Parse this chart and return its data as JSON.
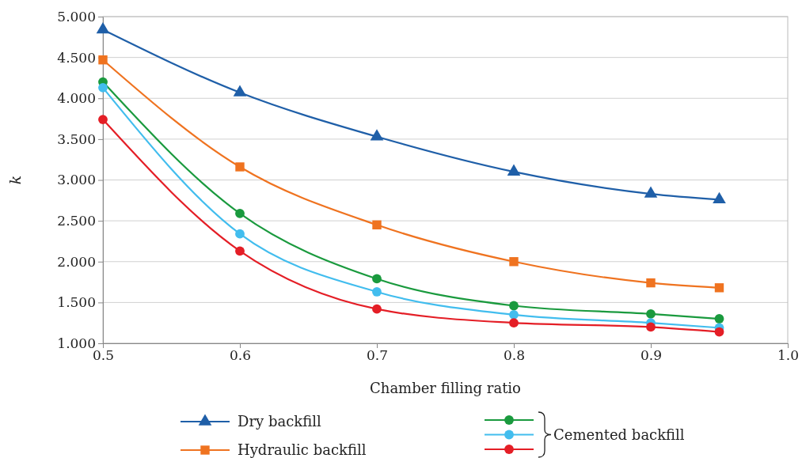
{
  "chart_data": {
    "type": "line",
    "xlabel": "Chamber filling ratio",
    "ylabel": "k",
    "x": [
      0.5,
      0.6,
      0.7,
      0.8,
      0.9,
      0.95
    ],
    "xlim": [
      0.5,
      1.0
    ],
    "xticks": [
      0.5,
      0.6,
      0.7,
      0.8,
      0.9,
      {
        "value": 1.0,
        "label": "1.0"
      }
    ],
    "ylim": [
      1,
      5
    ],
    "yticks": [
      {
        "value": 1,
        "label": "1.000"
      },
      {
        "value": 1.5,
        "label": "1.500"
      },
      {
        "value": 2,
        "label": "2.000"
      },
      {
        "value": 2.5,
        "label": "2.500"
      },
      {
        "value": 3,
        "label": "3.000"
      },
      {
        "value": 3.5,
        "label": "3.500"
      },
      {
        "value": 4,
        "label": "4.000"
      },
      {
        "value": 4.5,
        "label": "4.500"
      },
      {
        "value": 5,
        "label": "5.000"
      }
    ],
    "grid": "y",
    "legend": "bottom",
    "series": [
      {
        "name": "Dry backfill",
        "color": "#1f5fa8",
        "marker": "triangle",
        "values": [
          4.84,
          4.07,
          3.53,
          3.1,
          2.83,
          2.76
        ]
      },
      {
        "name": "Hydraulic backfill",
        "color": "#ef7320",
        "marker": "square",
        "values": [
          4.47,
          3.16,
          2.45,
          2.0,
          1.74,
          1.68
        ]
      },
      {
        "color": "#1a9a3e",
        "marker": "circle",
        "values": [
          4.2,
          2.59,
          1.79,
          1.46,
          1.36,
          1.3
        ]
      },
      {
        "color": "#42bdee",
        "marker": "circle",
        "values": [
          4.13,
          2.34,
          1.63,
          1.35,
          1.25,
          1.19
        ]
      },
      {
        "color": "#e41e26",
        "marker": "circle",
        "values": [
          3.74,
          2.13,
          1.42,
          1.25,
          1.2,
          1.14
        ]
      }
    ],
    "annotations": [
      "Cemented backfill"
    ]
  }
}
